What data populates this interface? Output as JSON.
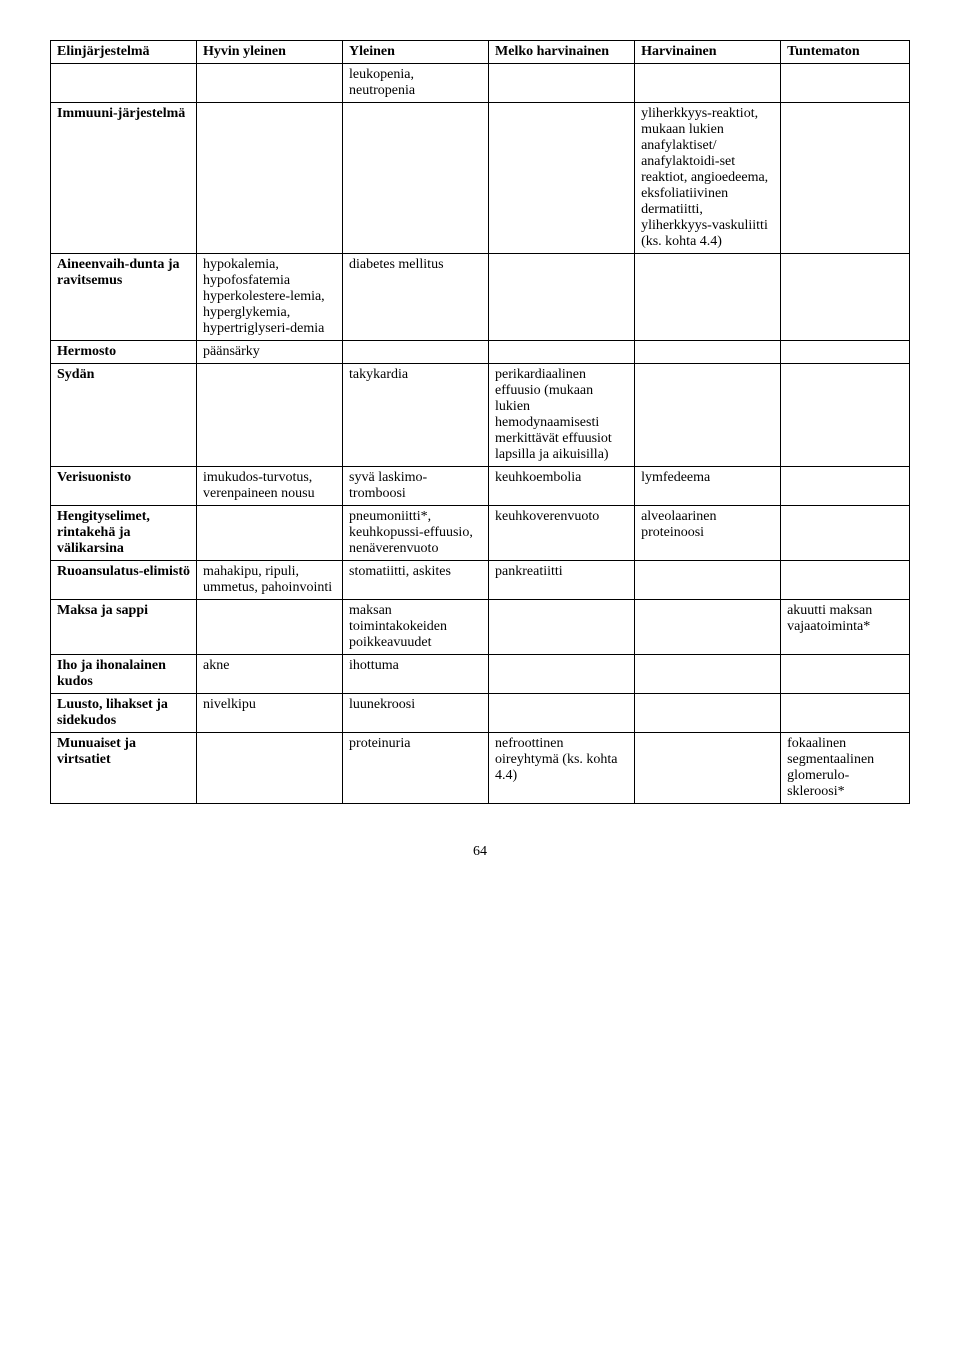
{
  "table": {
    "headers": [
      "Elinjärjestelmä",
      "Hyvin yleinen",
      "Yleinen",
      "Melko harvinainen",
      "Harvinainen",
      "Tuntematon"
    ],
    "rows": [
      {
        "c0": "",
        "c1": "",
        "c2": "leukopenia, neutropenia",
        "c3": "",
        "c4": "",
        "c5": ""
      },
      {
        "c0": "Immuuni-järjestelmä",
        "c1": "",
        "c2": "",
        "c3": "",
        "c4": "yliherkkyys-reaktiot, mukaan lukien anafylaktiset/ anafylaktoidi-set reaktiot, angioedeema, eksfoliatiivinen dermatiitti, yliherkkyys-vaskuliitti (ks. kohta 4.4)",
        "c5": ""
      },
      {
        "c0": "Aineenvaih-dunta ja ravitsemus",
        "c1": "hypokalemia, hypofosfatemia hyperkolestere-lemia, hyperglykemia, hypertriglyseri-demia",
        "c2": "diabetes mellitus",
        "c3": "",
        "c4": "",
        "c5": ""
      },
      {
        "c0": "Hermosto",
        "c1": "päänsärky",
        "c2": "",
        "c3": "",
        "c4": "",
        "c5": ""
      },
      {
        "c0": "Sydän",
        "c1": "",
        "c2": "takykardia",
        "c3": "perikardiaalinen effuusio (mukaan lukien hemodynaamisesti merkittävät effuusiot lapsilla ja aikuisilla)",
        "c4": "",
        "c5": ""
      },
      {
        "c0": "Verisuonisto",
        "c1": "imukudos-turvotus, verenpaineen nousu",
        "c2": "syvä laskimo-tromboosi",
        "c3": "keuhkoembolia",
        "c4": "lymfedeema",
        "c5": ""
      },
      {
        "c0": "Hengityselimet, rintakehä ja välikarsina",
        "c1": "",
        "c2": "pneumoniitti*, keuhkopussi-effuusio, nenäverenvuoto",
        "c3": "keuhkoverenvuoto",
        "c4": "alveolaarinen proteinoosi",
        "c5": ""
      },
      {
        "c0": "Ruoansulatus-elimistö",
        "c1": "mahakipu, ripuli, ummetus, pahoinvointi",
        "c2": "stomatiitti, askites",
        "c3": "pankreatiitti",
        "c4": "",
        "c5": ""
      },
      {
        "c0": "Maksa ja sappi",
        "c1": "",
        "c2": "maksan toimintakokeiden poikkeavuudet",
        "c3": "",
        "c4": "",
        "c5": "akuutti maksan vajaatoiminta*"
      },
      {
        "c0": "Iho ja ihonalainen kudos",
        "c1": "akne",
        "c2": "ihottuma",
        "c3": "",
        "c4": "",
        "c5": ""
      },
      {
        "c0": "Luusto, lihakset ja sidekudos",
        "c1": "nivelkipu",
        "c2": "luunekroosi",
        "c3": "",
        "c4": "",
        "c5": ""
      },
      {
        "c0": "Munuaiset ja virtsatiet",
        "c1": "",
        "c2": "proteinuria",
        "c3": "nefroottinen oireyhtymä (ks. kohta 4.4)",
        "c4": "",
        "c5": "fokaalinen segmentaalinen glomerulo-skleroosi*"
      }
    ]
  },
  "page_number": "64"
}
